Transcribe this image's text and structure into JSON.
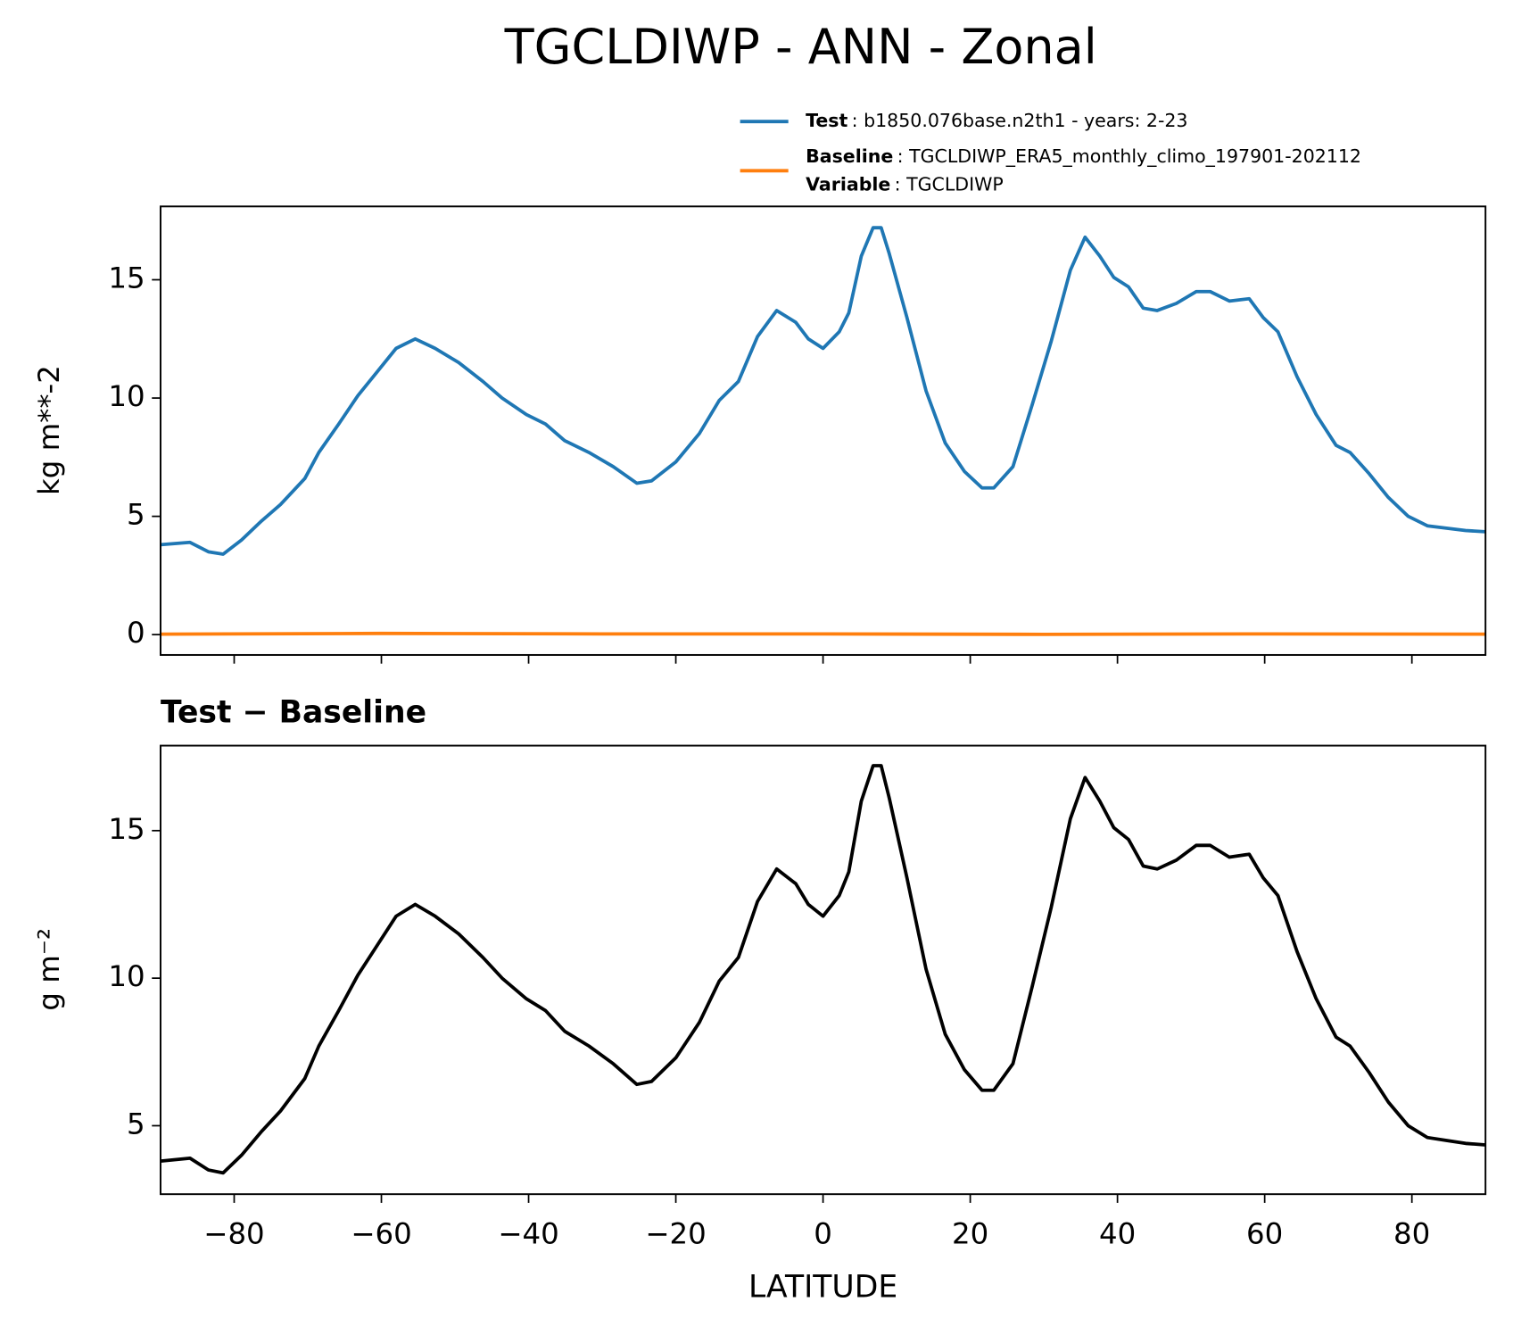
{
  "chart_data": [
    {
      "type": "line",
      "title": "TGCLDIWP - ANN - Zonal",
      "ylabel": "kg m**-2",
      "xlim": [
        -90,
        90
      ],
      "xticks": [
        -80,
        -60,
        -40,
        -20,
        0,
        20,
        40,
        60,
        80
      ],
      "ylim": [
        -0.86,
        18.1
      ],
      "yticks": [
        0,
        5,
        10,
        15
      ],
      "series": [
        {
          "name": "Test",
          "detail": ": b1850.076base.n2th1 - years: 2-23",
          "color": "#1f77b4",
          "x": [
            -90,
            -86,
            -83.5,
            -81.5,
            -79,
            -76.3,
            -73.7,
            -70.4,
            -68.5,
            -65.8,
            -63.2,
            -60.6,
            -58,
            -55.4,
            -52.7,
            -49.5,
            -46.2,
            -43.6,
            -40.3,
            -37.7,
            -35.1,
            -31.8,
            -28.5,
            -25.3,
            -23.3,
            -20,
            -16.8,
            -14.1,
            -11.5,
            -8.9,
            -6.3,
            -3.7,
            -2,
            0,
            2.2,
            3.5,
            5.2,
            6.8,
            7.9,
            9,
            11.4,
            14,
            16.6,
            19.2,
            21.6,
            23.2,
            25.8,
            28.4,
            31,
            33.6,
            35.6,
            37.6,
            39.5,
            41.5,
            43.5,
            45.4,
            48,
            50.7,
            52.6,
            55.2,
            57.9,
            59.8,
            61.8,
            64.4,
            67,
            69.7,
            71.6,
            74.2,
            76.8,
            79.5,
            82.1,
            84.7,
            87.3,
            90
          ],
          "values": [
            3.8,
            3.9,
            3.5,
            3.4,
            4.0,
            4.8,
            5.5,
            6.6,
            7.7,
            8.9,
            10.1,
            11.1,
            12.1,
            12.5,
            12.1,
            11.5,
            10.7,
            10.0,
            9.3,
            8.9,
            8.2,
            7.7,
            7.1,
            6.4,
            6.5,
            7.3,
            8.5,
            9.9,
            10.7,
            12.6,
            13.7,
            13.2,
            12.5,
            12.1,
            12.8,
            13.6,
            16.0,
            17.2,
            17.2,
            16.1,
            13.4,
            10.3,
            8.1,
            6.9,
            6.2,
            6.2,
            7.1,
            9.7,
            12.4,
            15.4,
            16.8,
            16.0,
            15.1,
            14.7,
            13.8,
            13.7,
            14.0,
            14.5,
            14.5,
            14.1,
            14.2,
            13.4,
            12.8,
            10.9,
            9.3,
            8.0,
            7.7,
            6.8,
            5.8,
            5.0,
            4.6,
            4.5,
            4.4,
            4.35
          ]
        },
        {
          "name": "Baseline",
          "detail": ": TGCLDIWP_ERA5_monthly_climo_197901-202112",
          "color": "#ff7f0e",
          "x": [
            -90,
            -60,
            -30,
            0,
            30,
            60,
            90
          ],
          "values": [
            0.02,
            0.05,
            0.03,
            0.03,
            0.01,
            0.03,
            0.02
          ]
        }
      ],
      "legend_note": {
        "name": "Variable",
        "detail": ": TGCLDIWP"
      }
    },
    {
      "type": "line",
      "title": "Test − Baseline",
      "ylabel": "g m⁻²",
      "xlabel": "LATITUDE",
      "xlim": [
        -90,
        90
      ],
      "xticks": [
        {
          "value": -80,
          "label": "−80"
        },
        {
          "value": -60,
          "label": "−60"
        },
        {
          "value": -40,
          "label": "−40"
        },
        {
          "value": -20,
          "label": "−20"
        },
        0,
        20,
        40,
        60,
        80
      ],
      "ylim": [
        2.68,
        17.88
      ],
      "yticks": [
        5,
        10,
        15
      ],
      "color": "#000000",
      "x": [
        -90,
        -86,
        -83.5,
        -81.5,
        -79,
        -76.3,
        -73.7,
        -70.4,
        -68.5,
        -65.8,
        -63.2,
        -60.6,
        -58,
        -55.4,
        -52.7,
        -49.5,
        -46.2,
        -43.6,
        -40.3,
        -37.7,
        -35.1,
        -31.8,
        -28.5,
        -25.3,
        -23.3,
        -20,
        -16.8,
        -14.1,
        -11.5,
        -8.9,
        -6.3,
        -3.7,
        -2,
        0,
        2.2,
        3.5,
        5.2,
        6.8,
        7.9,
        9,
        11.4,
        14,
        16.6,
        19.2,
        21.6,
        23.2,
        25.8,
        28.4,
        31,
        33.6,
        35.6,
        37.6,
        39.5,
        41.5,
        43.5,
        45.4,
        48,
        50.7,
        52.6,
        55.2,
        57.9,
        59.8,
        61.8,
        64.4,
        67,
        69.7,
        71.6,
        74.2,
        76.8,
        79.5,
        82.1,
        84.7,
        87.3,
        90
      ],
      "values": [
        3.8,
        3.9,
        3.5,
        3.4,
        4.0,
        4.8,
        5.5,
        6.6,
        7.7,
        8.9,
        10.1,
        11.1,
        12.1,
        12.5,
        12.1,
        11.5,
        10.7,
        10.0,
        9.3,
        8.9,
        8.2,
        7.7,
        7.1,
        6.4,
        6.5,
        7.3,
        8.5,
        9.9,
        10.7,
        12.6,
        13.7,
        13.2,
        12.5,
        12.1,
        12.8,
        13.6,
        16.0,
        17.2,
        17.2,
        16.1,
        13.4,
        10.3,
        8.1,
        6.9,
        6.2,
        6.2,
        7.1,
        9.7,
        12.4,
        15.4,
        16.8,
        16.0,
        15.1,
        14.7,
        13.8,
        13.7,
        14.0,
        14.5,
        14.5,
        14.1,
        14.2,
        13.4,
        12.8,
        10.9,
        9.3,
        8.0,
        7.7,
        6.8,
        5.8,
        5.0,
        4.6,
        4.5,
        4.4,
        4.35
      ]
    }
  ]
}
